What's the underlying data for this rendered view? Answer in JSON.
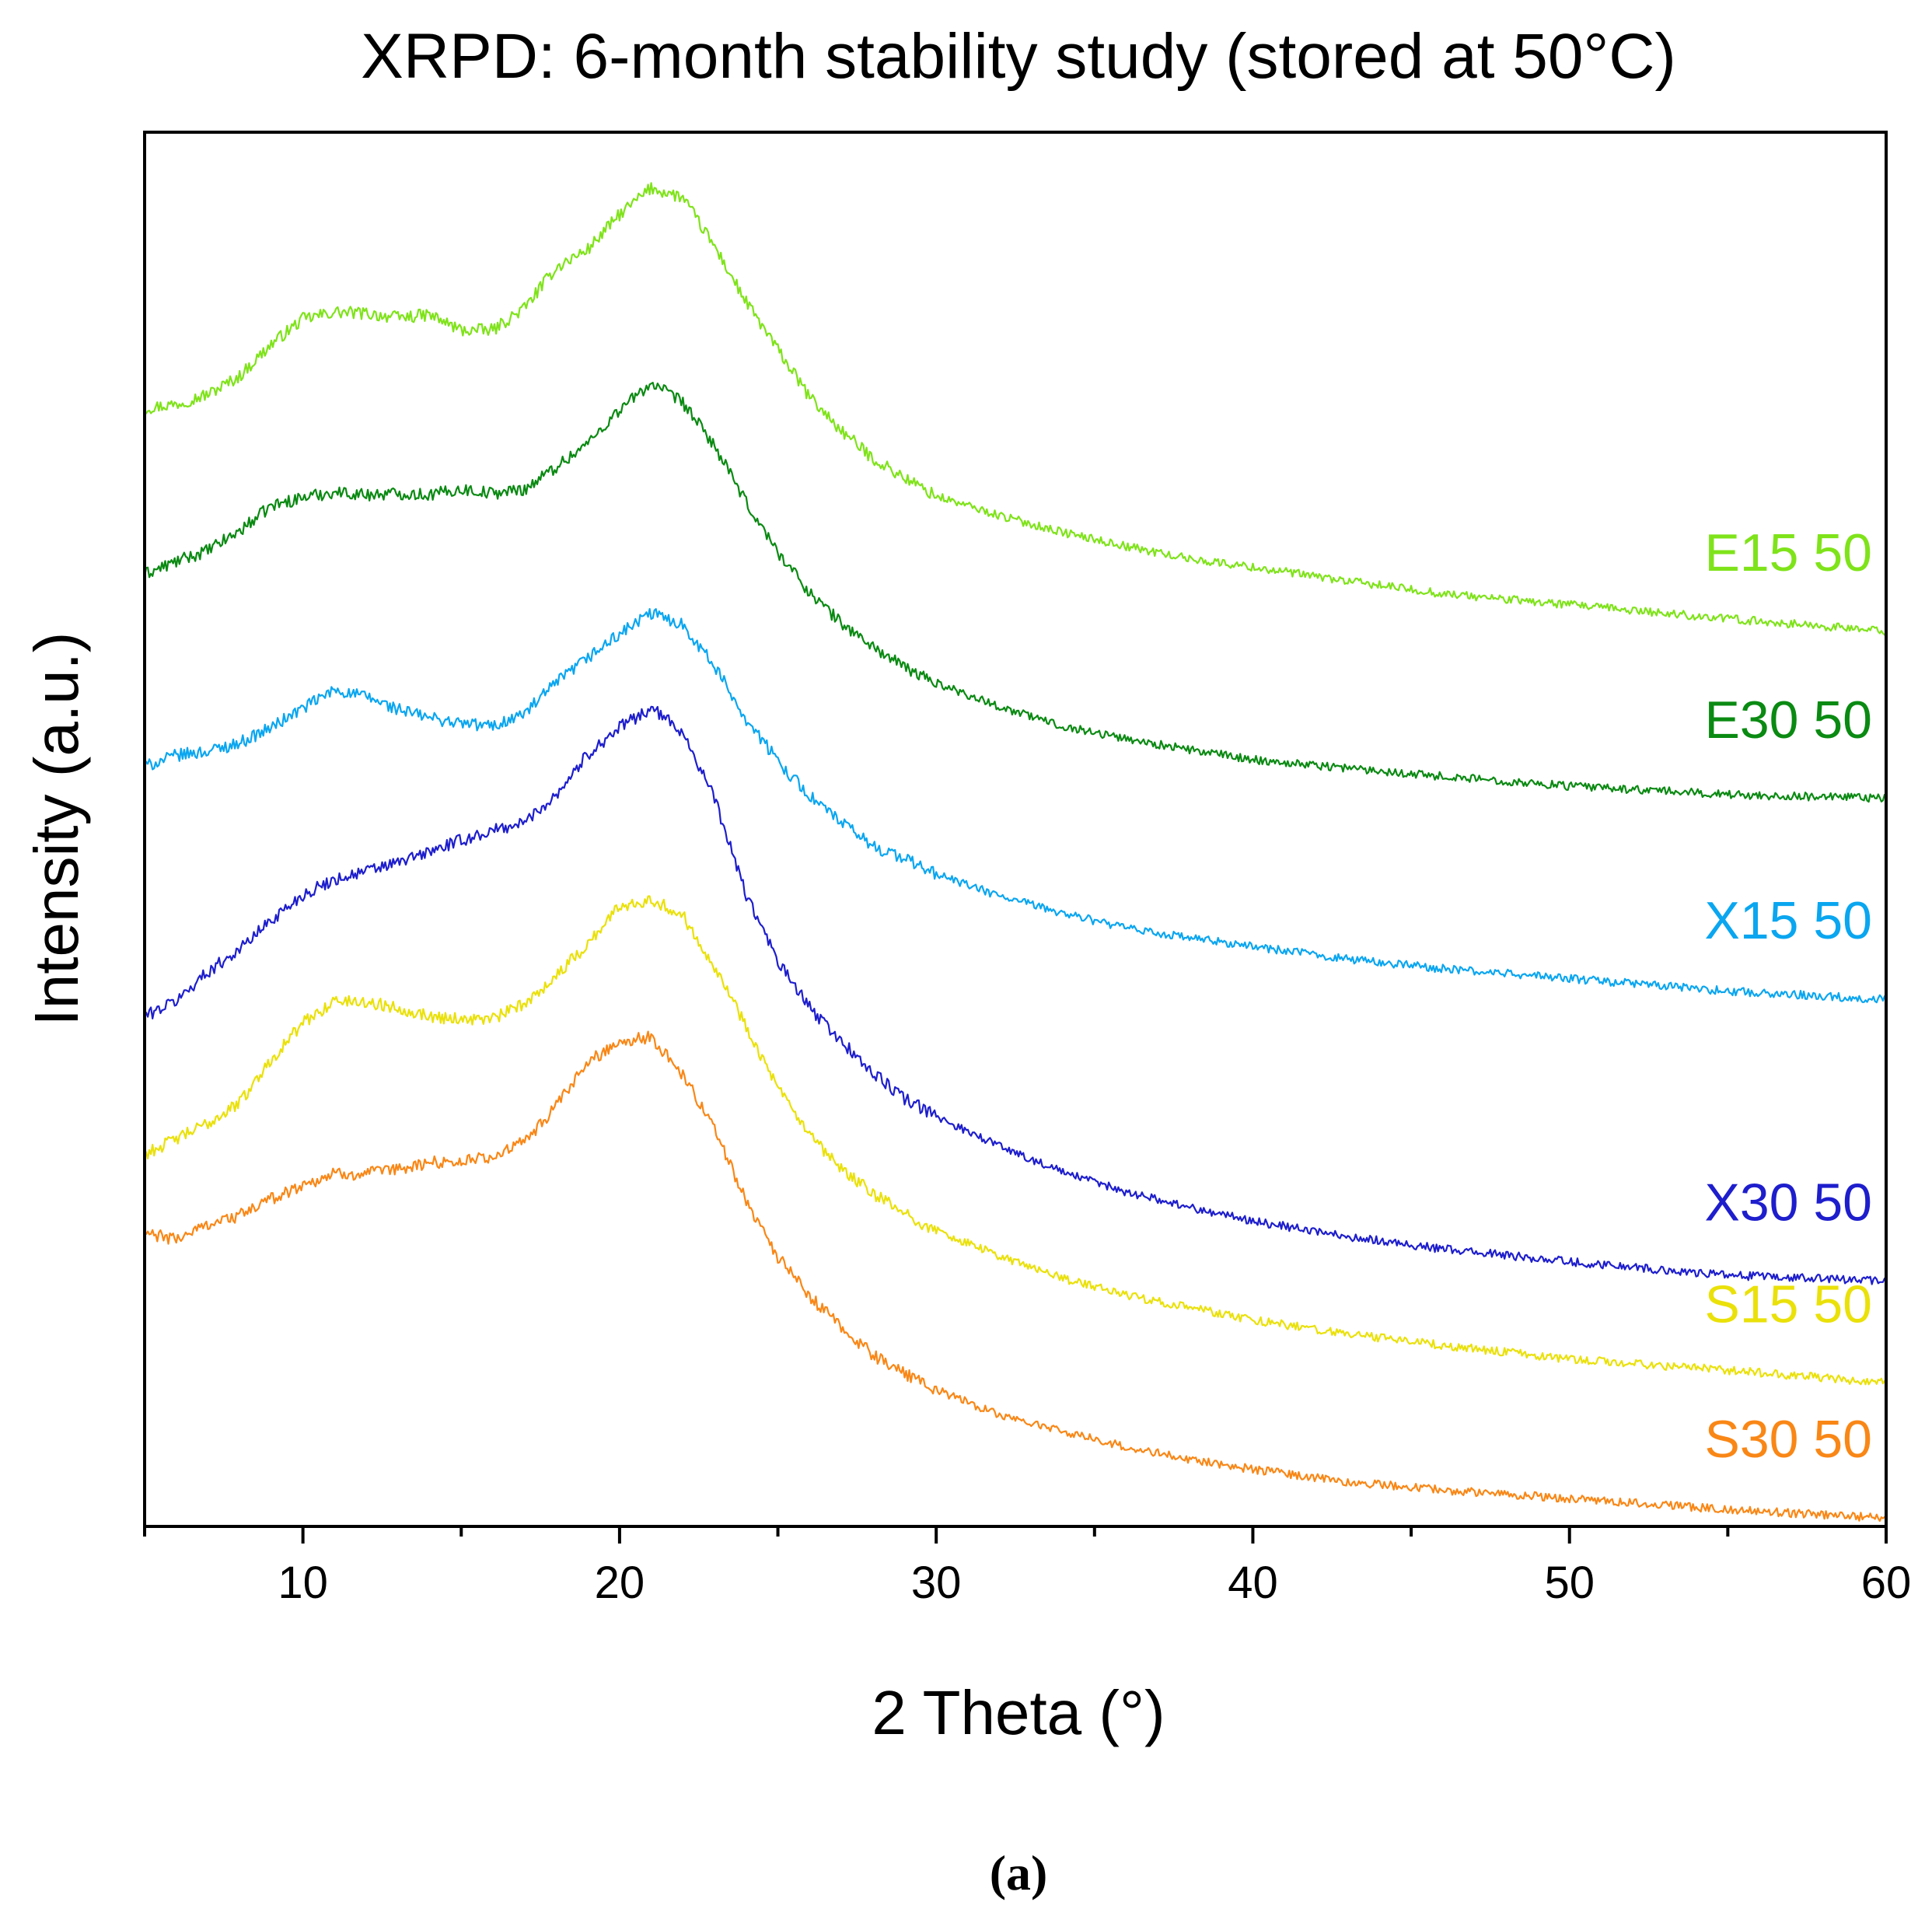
{
  "chart_data": {
    "type": "line",
    "title": "XRPD: 6-month stability study (stored at 50°C)",
    "xlabel": "2 Theta (°)",
    "ylabel": "Intensity (a.u.)",
    "xlim": [
      5,
      60
    ],
    "ylim": [
      0,
      100
    ],
    "x_ticks": [
      10,
      20,
      30,
      40,
      50,
      60
    ],
    "x_minor_step": 5,
    "y_ticks_shown": false,
    "caption": "(a)",
    "series": [
      {
        "name": "E15 50",
        "label": "E15 50",
        "color": "#7FE31A",
        "x": [
          5,
          6,
          7,
          8,
          9,
          10,
          11,
          12,
          13,
          14,
          15,
          16,
          17,
          18,
          19,
          20,
          21,
          22,
          23,
          24,
          25,
          26,
          27,
          28,
          29,
          30,
          32,
          34,
          36,
          38,
          40,
          43,
          46,
          50,
          55,
          60
        ],
        "values": [
          80.2,
          80.5,
          81.2,
          82.5,
          84.8,
          86.6,
          87.1,
          87.0,
          86.7,
          86.9,
          85.8,
          85.8,
          87.4,
          90.3,
          91.6,
          94.1,
          96.0,
          95.3,
          91.8,
          87.8,
          84.4,
          81.0,
          78.6,
          76.6,
          75.2,
          73.9,
          72.5,
          71.3,
          70.3,
          69.4,
          68.8,
          67.8,
          66.9,
          66.1,
          65.1,
          64.2
        ]
      },
      {
        "name": "E30 50",
        "label": "E30 50",
        "color": "#0A8A12",
        "x": [
          5,
          6,
          7,
          8,
          9,
          10,
          11,
          12,
          13,
          14,
          15,
          16,
          17,
          18,
          19,
          20,
          21,
          22,
          23,
          24,
          25,
          26,
          27,
          28,
          29,
          30,
          32,
          34,
          36,
          38,
          40,
          43,
          46,
          50,
          55,
          60
        ],
        "values": [
          68.3,
          69.2,
          70.0,
          71.4,
          73.2,
          73.8,
          74.2,
          74.0,
          74.1,
          74.0,
          74.4,
          74.1,
          74.4,
          76.0,
          77.7,
          80.1,
          82.0,
          80.6,
          77.5,
          73.4,
          69.9,
          67.0,
          64.8,
          63.1,
          61.6,
          60.5,
          58.8,
          57.4,
          56.5,
          55.7,
          55.0,
          54.4,
          53.8,
          53.1,
          52.5,
          52.2
        ]
      },
      {
        "name": "X15 50",
        "label": "X15 50",
        "color": "#0AA6F0",
        "x": [
          5,
          6,
          7,
          8,
          9,
          10,
          11,
          12,
          13,
          14,
          15,
          16,
          17,
          18,
          19,
          20,
          21,
          22,
          23,
          24,
          25,
          26,
          27,
          28,
          29,
          30,
          32,
          34,
          36,
          38,
          40,
          43,
          46,
          50,
          55,
          60
        ],
        "values": [
          54.5,
          55.3,
          55.6,
          56.2,
          57.3,
          58.7,
          60.0,
          59.5,
          58.6,
          58.0,
          57.6,
          57.4,
          58.3,
          60.5,
          62.3,
          64.0,
          65.5,
          64.7,
          61.7,
          57.9,
          54.9,
          52.4,
          50.5,
          48.8,
          47.9,
          46.8,
          45.2,
          44.0,
          42.9,
          42.2,
          41.6,
          40.7,
          40.0,
          39.3,
          38.4,
          37.8
        ]
      },
      {
        "name": "X30 50",
        "label": "X30 50",
        "color": "#1E1ECD",
        "x": [
          5,
          6,
          7,
          8,
          9,
          10,
          11,
          12,
          13,
          14,
          15,
          16,
          17,
          18,
          19,
          20,
          21,
          22,
          23,
          24,
          25,
          26,
          27,
          28,
          29,
          30,
          32,
          34,
          36,
          38,
          40,
          43,
          46,
          50,
          55,
          60
        ],
        "values": [
          36.6,
          37.7,
          39.8,
          41.4,
          43.5,
          45.3,
          46.4,
          47.0,
          47.6,
          48.4,
          49.2,
          49.9,
          50.5,
          52.5,
          55.4,
          57.3,
          58.7,
          57.0,
          52.2,
          45.3,
          40.5,
          37.2,
          34.8,
          32.5,
          30.7,
          29.4,
          27.3,
          25.4,
          24.0,
          22.9,
          21.9,
          20.8,
          19.9,
          19.0,
          18.0,
          17.6
        ]
      },
      {
        "name": "S15 50",
        "label": "S15 50",
        "color": "#EAE10A",
        "x": [
          5,
          6,
          7,
          8,
          9,
          10,
          11,
          12,
          13,
          14,
          15,
          16,
          17,
          18,
          19,
          20,
          21,
          22,
          23,
          24,
          25,
          26,
          27,
          28,
          29,
          30,
          32,
          34,
          36,
          38,
          40,
          43,
          46,
          50,
          55,
          60
        ],
        "values": [
          26.7,
          27.8,
          28.9,
          30.4,
          33.5,
          36.1,
          37.7,
          37.6,
          37.2,
          36.6,
          36.4,
          36.4,
          37.5,
          39.5,
          41.8,
          44.5,
          45.0,
          43.8,
          40.2,
          35.9,
          31.4,
          28.0,
          25.6,
          23.9,
          22.4,
          21.2,
          19.4,
          17.8,
          16.6,
          15.7,
          14.8,
          13.8,
          13.0,
          12.0,
          11.2,
          10.3
        ]
      },
      {
        "name": "S30 50",
        "label": "S30 50",
        "color": "#F98716",
        "x": [
          5,
          6,
          7,
          8,
          9,
          10,
          11,
          12,
          13,
          14,
          15,
          16,
          17,
          18,
          19,
          20,
          21,
          22,
          23,
          24,
          25,
          26,
          27,
          28,
          29,
          30,
          32,
          34,
          36,
          38,
          40,
          43,
          46,
          50,
          55,
          60
        ],
        "values": [
          21.0,
          20.6,
          21.7,
          22.3,
          23.5,
          24.5,
          25.3,
          25.3,
          25.6,
          26.1,
          26.2,
          26.5,
          27.6,
          30.1,
          33.3,
          34.8,
          35.1,
          32.4,
          28.5,
          23.4,
          19.3,
          16.5,
          14.3,
          12.3,
          11.0,
          9.8,
          8.0,
          6.8,
          5.7,
          4.8,
          4.1,
          3.2,
          2.6,
          2.0,
          1.2,
          0.6
        ]
      }
    ]
  }
}
